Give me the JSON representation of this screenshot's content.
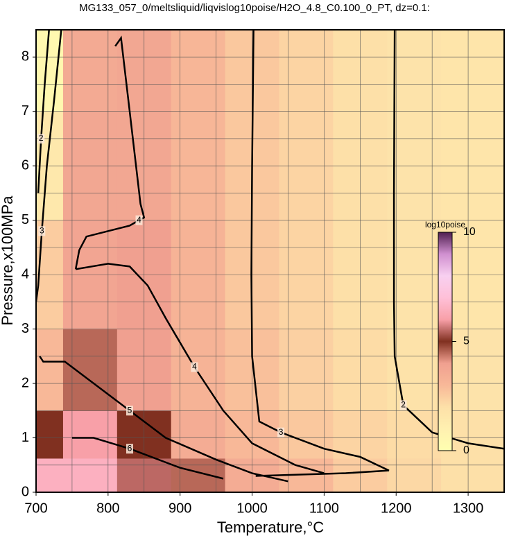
{
  "chart_data": {
    "type": "contour",
    "title": "MG133_057_0/meltsliquid/liqvislog10poise/H2O_4.8_C0.100_0_PT, dz=0.1:",
    "x_label": "Temperature,°C",
    "y_label": "Pressure,x100MPa",
    "xlim": [
      700,
      1350
    ],
    "ylim": [
      0,
      8.5
    ],
    "xticks": [
      700,
      800,
      900,
      1000,
      1100,
      1200,
      1300
    ],
    "yticks": [
      0,
      1,
      2,
      3,
      4,
      5,
      6,
      7,
      8
    ],
    "xgrid": [
      750,
      800,
      850,
      900,
      950,
      1000,
      1050,
      1100,
      1150,
      1200,
      1250,
      1300
    ],
    "ygrid": [
      0.5,
      1,
      1.5,
      2,
      2.5,
      3,
      3.5,
      4,
      4.5,
      5,
      5.5,
      6,
      6.5,
      7,
      7.5,
      8
    ],
    "field": {
      "x": [
        700,
        775,
        850,
        925,
        1000,
        1075,
        1150,
        1225,
        1300
      ],
      "y": [
        0.25,
        1,
        2,
        4,
        6,
        8
      ],
      "values": [
        [
          6.5,
          6.5,
          5.5,
          4.5,
          3.5,
          3,
          2.5,
          2.2,
          2
        ],
        [
          5,
          6,
          5,
          3.5,
          3,
          2.6,
          2.3,
          2.1,
          2
        ],
        [
          3,
          4.5,
          4,
          3.2,
          2.8,
          2.4,
          2.1,
          1.9,
          1.8
        ],
        [
          2.5,
          3.8,
          4,
          3.2,
          2.6,
          2.3,
          2,
          1.8,
          1.7
        ],
        [
          1.5,
          3.7,
          3.7,
          3.1,
          2.6,
          2.3,
          2,
          1.8,
          1.7
        ],
        [
          0.5,
          3.6,
          3.7,
          3.1,
          2.6,
          2.3,
          2,
          1.8,
          1.7
        ]
      ]
    },
    "lines": [
      {
        "level": 4,
        "x": [
          755,
          760,
          770,
          800,
          830,
          843,
          850,
          845,
          830,
          818,
          810
        ],
        "y": [
          4.1,
          4.45,
          4.7,
          4.8,
          4.9,
          5.0,
          5.05,
          5.3,
          7,
          8.35,
          8.2
        ]
      },
      {
        "level": 4,
        "x": [
          755,
          800,
          830,
          855,
          880,
          920,
          960,
          1000,
          1060,
          1100
        ],
        "y": [
          4.1,
          4.2,
          4.15,
          3.8,
          3.2,
          2.3,
          1.5,
          0.9,
          0.5,
          0.35
        ]
      },
      {
        "level": 5,
        "x": [
          705,
          710,
          740,
          780,
          830,
          880,
          950,
          1000,
          1050
        ],
        "y": [
          2.5,
          2.4,
          2.4,
          2.0,
          1.5,
          1.0,
          0.6,
          0.35,
          0.2
        ]
      },
      {
        "level": 6,
        "x": [
          750,
          780,
          830,
          900,
          960
        ],
        "y": [
          1.0,
          1.0,
          0.8,
          0.45,
          0.25
        ]
      },
      {
        "level": 3,
        "x": [
          735,
          725,
          715,
          708,
          703,
          700
        ],
        "y": [
          8.5,
          7.2,
          6.0,
          4.8,
          3.8,
          3.5
        ]
      },
      {
        "level": 2,
        "x": [
          718,
          712,
          707,
          703
        ],
        "y": [
          8.5,
          7.5,
          6.5,
          5.5
        ]
      },
      {
        "level": 3,
        "x": [
          1002,
          1000,
          999,
          1000,
          1010,
          1040,
          1100,
          1150,
          1190,
          1130,
          1005
        ],
        "y": [
          8.5,
          6,
          4,
          2.5,
          1.3,
          1.1,
          0.8,
          0.65,
          0.4,
          0.35,
          0.3
        ]
      },
      {
        "level": 2,
        "x": [
          1198,
          1197,
          1197,
          1198,
          1210,
          1250,
          1300,
          1350
        ],
        "y": [
          8.5,
          5.5,
          3.5,
          2.5,
          1.6,
          1.1,
          0.9,
          0.8
        ]
      }
    ],
    "colorbar": {
      "label": "log10poise",
      "range": [
        0,
        10
      ],
      "ticks": [
        0,
        5,
        10
      ],
      "colors": [
        "#ffffb0",
        "#fff0b0",
        "#fde0a8",
        "#f8b898",
        "#f0a090",
        "#803020",
        "#f8a0a8",
        "#ffc0d8",
        "#f8d0f0",
        "#d090d0",
        "#502050"
      ]
    }
  }
}
